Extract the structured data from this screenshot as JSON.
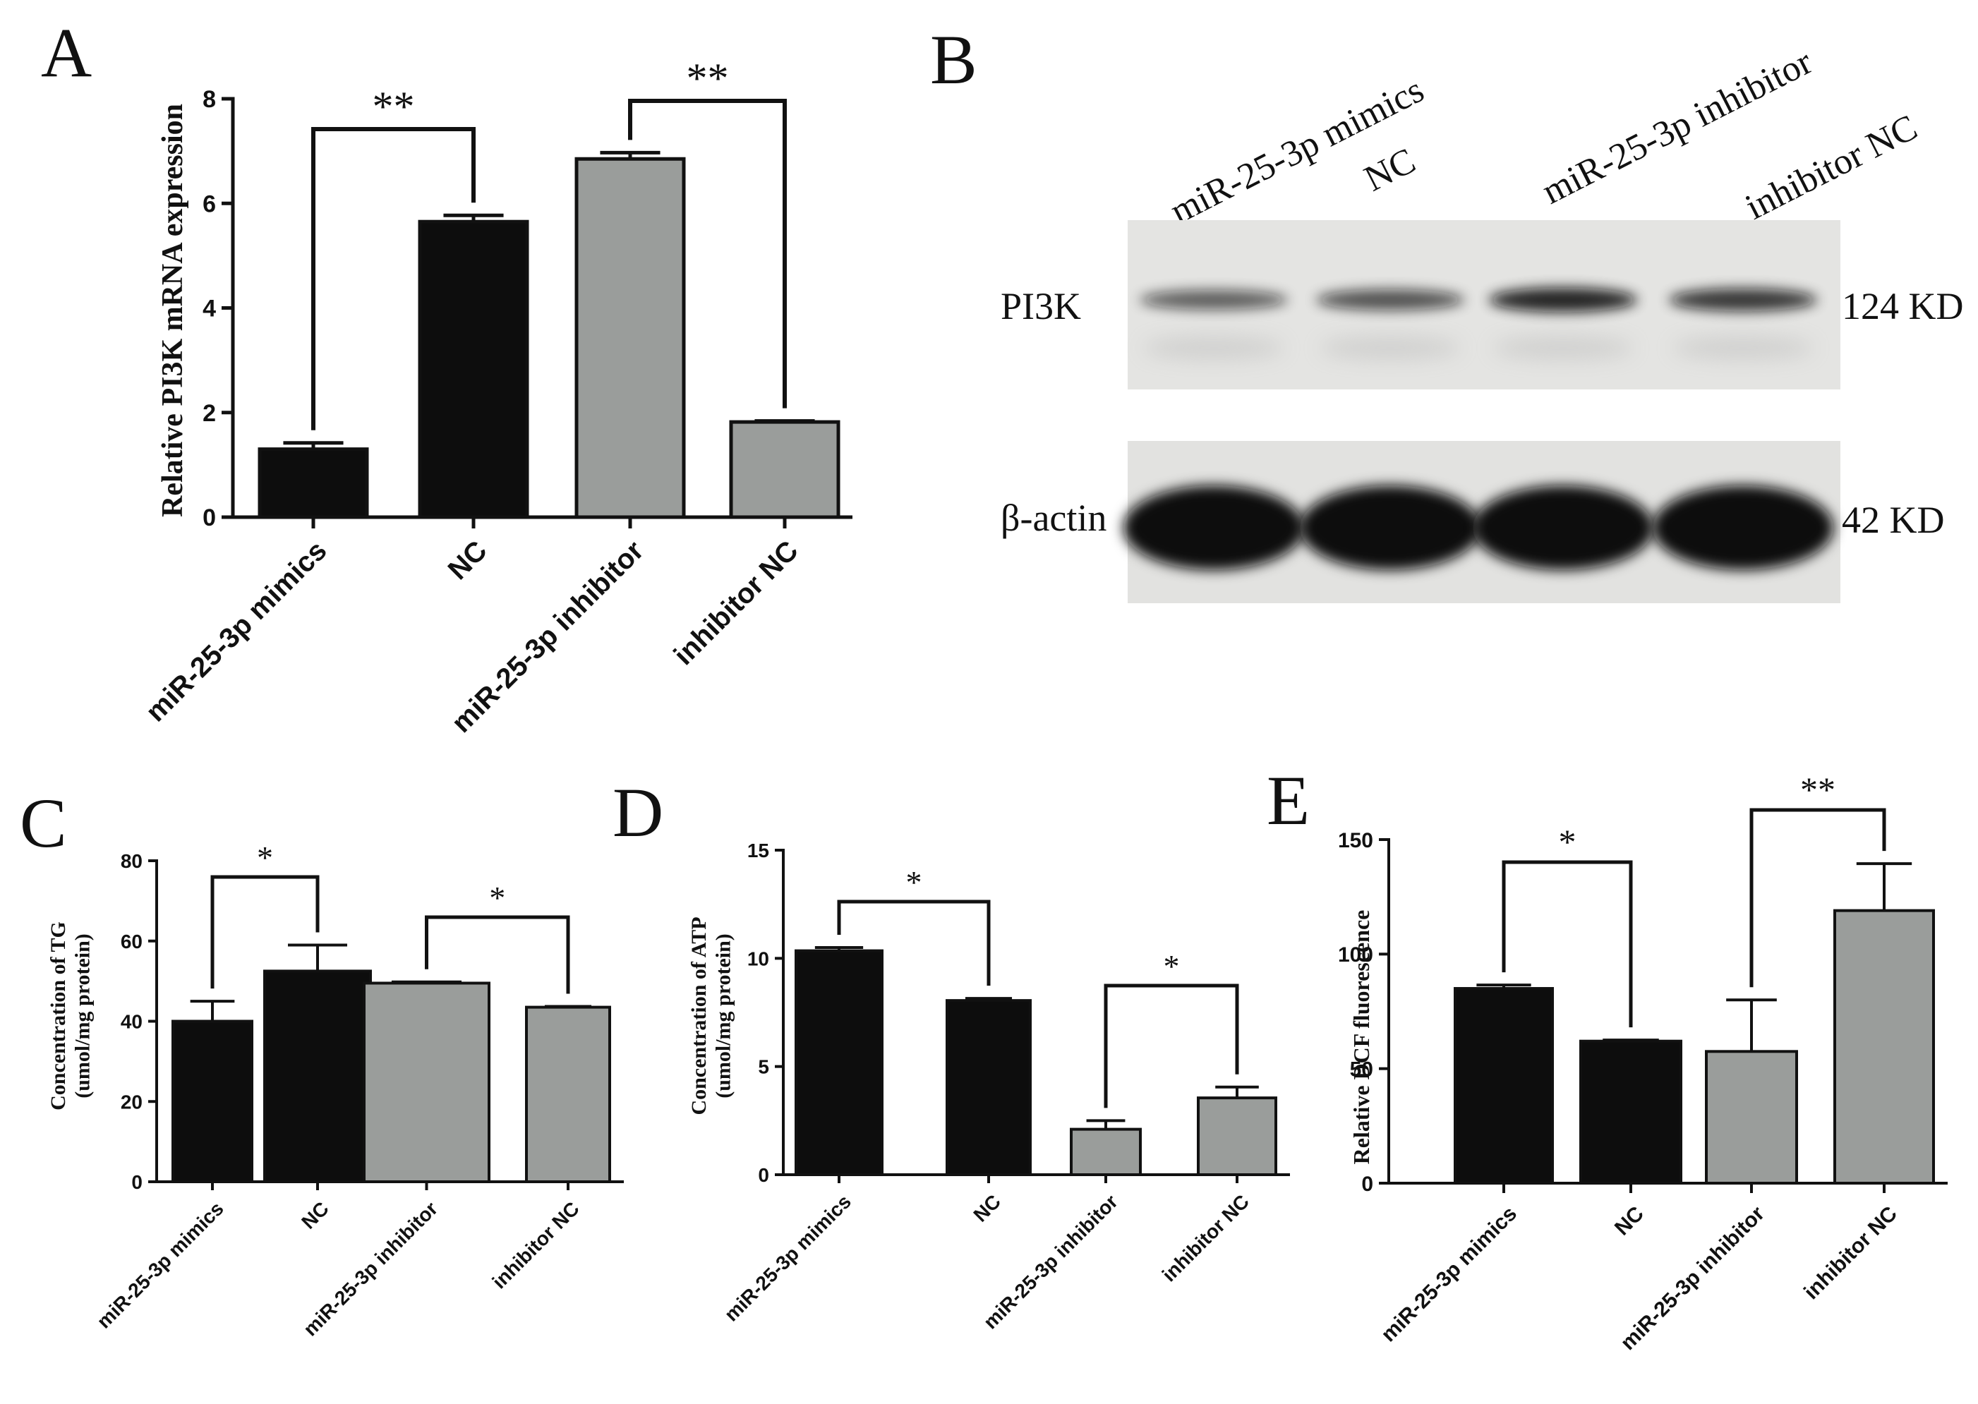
{
  "colors": {
    "black_bar": "#0d0d0d",
    "gray_bar": "#9a9d9b",
    "axis": "#111111",
    "blot_bg": "#e4e4e2",
    "band": "#111111"
  },
  "panels": {
    "A": {
      "letter": "A"
    },
    "B": {
      "letter": "B",
      "lanes": [
        "miR-25-3p mimics",
        "NC",
        "miR-25-3p inhibitor",
        "inhibitor NC"
      ],
      "rows": [
        {
          "protein": "PI3K",
          "size": "124 KD",
          "band_intensity": [
            0.45,
            0.55,
            0.9,
            0.75
          ]
        },
        {
          "protein": "β-actin",
          "size": "42 KD",
          "band_intensity": [
            1.0,
            1.0,
            1.0,
            1.0
          ]
        }
      ]
    },
    "C": {
      "letter": "C"
    },
    "D": {
      "letter": "D"
    },
    "E": {
      "letter": "E"
    }
  },
  "chart_data": [
    {
      "panel": "A",
      "type": "bar",
      "categories": [
        "miR-25-3p mimics",
        "NC",
        "miR-25-3p inhibitor",
        "inhibitor NC"
      ],
      "values": [
        1.3,
        5.65,
        6.85,
        1.82
      ],
      "errors": [
        0.12,
        0.12,
        0.12,
        0.02
      ],
      "bar_colors": [
        "black",
        "black",
        "gray",
        "gray"
      ],
      "ylabel": "Relative PI3K mRNA expression",
      "ylim": [
        0,
        8
      ],
      "yticks": [
        "0",
        "2",
        "4",
        "6",
        "8"
      ],
      "significance": [
        {
          "from": 0,
          "to": 1,
          "label": "**"
        },
        {
          "from": 2,
          "to": 3,
          "label": "**"
        }
      ]
    },
    {
      "panel": "C",
      "type": "bar",
      "categories": [
        "miR-25-3p mimics",
        "NC",
        "miR-25-3p inhibitor",
        "inhibitor NC"
      ],
      "values": [
        40,
        52.5,
        49.5,
        43.5
      ],
      "errors": [
        5,
        6.5,
        0.3,
        0.2
      ],
      "bar_colors": [
        "black",
        "black",
        "gray",
        "gray"
      ],
      "ylabel": [
        "Concentration of TG",
        "(umol/mg protein)"
      ],
      "ylim": [
        0,
        80
      ],
      "yticks": [
        "0",
        "20",
        "40",
        "60",
        "80"
      ],
      "significance": [
        {
          "from": 0,
          "to": 1,
          "label": "*"
        },
        {
          "from": 2,
          "to": 3,
          "label": "*"
        }
      ]
    },
    {
      "panel": "D",
      "type": "bar",
      "categories": [
        "miR-25-3p mimics",
        "NC",
        "miR-25-3p inhibitor",
        "inhibitor NC"
      ],
      "values": [
        10.35,
        8.05,
        2.1,
        3.55
      ],
      "errors": [
        0.15,
        0.1,
        0.4,
        0.5
      ],
      "bar_colors": [
        "black",
        "black",
        "gray",
        "gray"
      ],
      "ylabel": [
        "Concentration of ATP",
        "(umol/mg protein)"
      ],
      "ylim": [
        0,
        15
      ],
      "yticks": [
        "0",
        "5",
        "10",
        "15"
      ],
      "significance": [
        {
          "from": 0,
          "to": 1,
          "label": "*"
        },
        {
          "from": 2,
          "to": 3,
          "label": "*"
        }
      ]
    },
    {
      "panel": "E",
      "type": "bar",
      "categories": [
        "miR-25-3p mimics",
        "NC",
        "miR-25-3p inhibitor",
        "inhibitor NC"
      ],
      "values": [
        85,
        62,
        57.5,
        119
      ],
      "errors": [
        1.5,
        0.5,
        22.5,
        20.5
      ],
      "bar_colors": [
        "black",
        "black",
        "gray",
        "gray"
      ],
      "ylabel": "Relative DCF fluorescence",
      "ylim": [
        0,
        150
      ],
      "yticks": [
        "0",
        "50",
        "100",
        "150"
      ],
      "significance": [
        {
          "from": 0,
          "to": 1,
          "label": "*"
        },
        {
          "from": 2,
          "to": 3,
          "label": "**"
        }
      ]
    }
  ]
}
